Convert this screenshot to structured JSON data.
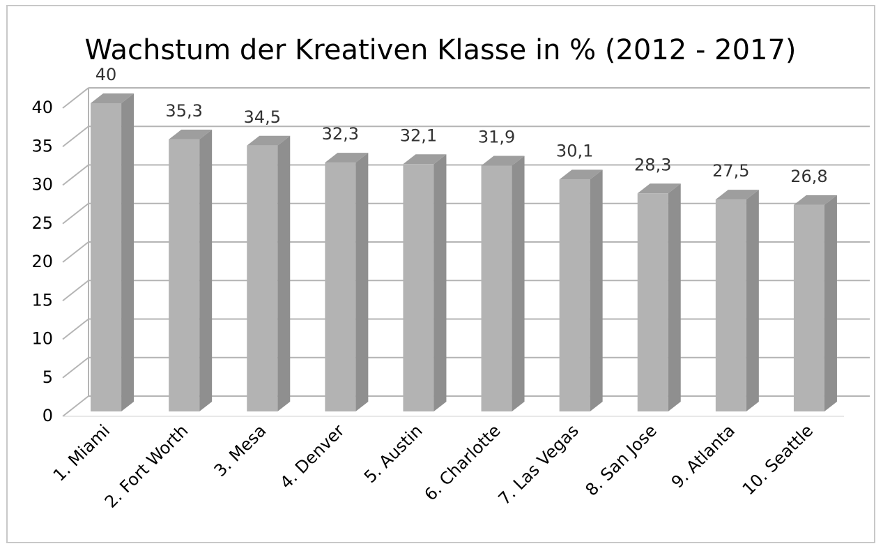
{
  "chart_data": {
    "type": "bar3d",
    "title": "Wachstum der Kreativen Klasse in % (2012 - 2017)",
    "categories": [
      "1. Miami",
      "2. Fort Worth",
      "3. Mesa",
      "4. Denver",
      "5. Austin",
      "6. Charlotte",
      "7. Las Vegas",
      "8. San Jose",
      "9. Atlanta",
      "10. Seattle"
    ],
    "values": [
      40,
      35.3,
      34.5,
      32.3,
      32.1,
      31.9,
      30.1,
      28.3,
      27.5,
      26.8
    ],
    "value_labels": [
      "40",
      "35,3",
      "34,5",
      "32,3",
      "32,1",
      "31,9",
      "30,1",
      "28,3",
      "27,5",
      "26,8"
    ],
    "color": "#b3b3b3",
    "ylim": [
      0,
      40
    ],
    "yticks": [
      0,
      5,
      10,
      15,
      20,
      25,
      30,
      35,
      40
    ],
    "grid": true
  }
}
